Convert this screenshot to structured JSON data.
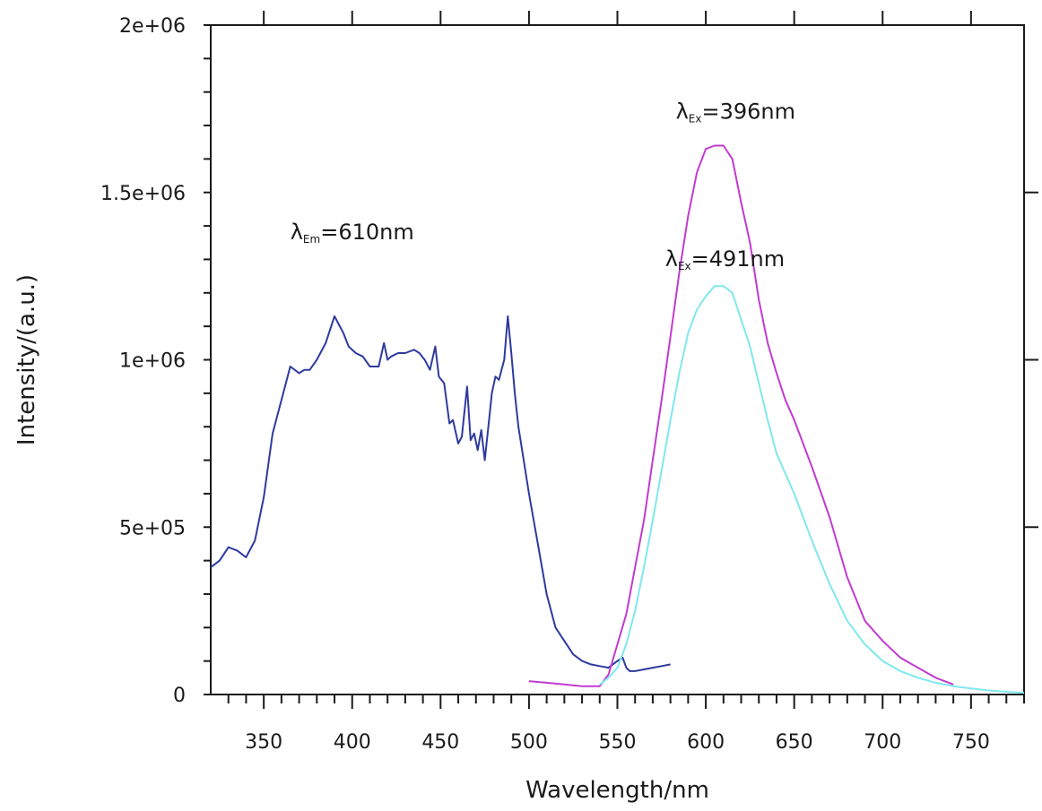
{
  "chart_data": {
    "type": "line",
    "title": "",
    "xlabel": "Wavelength/nm",
    "ylabel": "Intensity/(a.u.)",
    "xlim": [
      320,
      780
    ],
    "ylim": [
      0,
      2000000
    ],
    "x_ticks": [
      350,
      400,
      450,
      500,
      550,
      600,
      650,
      700,
      750
    ],
    "x_tick_labels": [
      "350",
      "400",
      "450",
      "500",
      "550",
      "600",
      "650",
      "700",
      "750"
    ],
    "y_ticks": [
      0,
      500000,
      1000000,
      1500000,
      2000000
    ],
    "y_tick_labels": [
      "0",
      "5e+05",
      "1e+06",
      "1.5e+06",
      "2e+06"
    ],
    "grid": false,
    "series": [
      {
        "color": "#2e3a9e",
        "x": [
          320,
          325,
          330,
          335,
          340,
          345,
          350,
          355,
          360,
          365,
          370,
          373,
          376,
          380,
          385,
          390,
          395,
          398,
          402,
          406,
          410,
          415,
          418,
          420,
          422,
          426,
          430,
          435,
          438,
          441,
          444,
          447,
          449,
          452,
          455,
          457,
          460,
          462,
          465,
          467,
          469,
          471,
          473,
          475,
          477,
          479,
          481,
          483,
          486,
          488,
          490,
          492,
          494,
          497,
          500,
          505,
          510,
          515,
          520,
          525,
          530,
          535,
          540,
          545,
          550,
          553,
          555,
          557,
          560,
          565,
          570,
          575,
          580
        ],
        "y": [
          380000,
          400000,
          440000,
          430000,
          410000,
          460000,
          590000,
          780000,
          880000,
          980000,
          960000,
          970000,
          970000,
          1000000,
          1050000,
          1130000,
          1080000,
          1040000,
          1020000,
          1010000,
          980000,
          980000,
          1050000,
          1000000,
          1010000,
          1020000,
          1020000,
          1030000,
          1020000,
          1000000,
          970000,
          1040000,
          950000,
          930000,
          810000,
          820000,
          750000,
          770000,
          920000,
          760000,
          780000,
          730000,
          790000,
          700000,
          800000,
          900000,
          950000,
          940000,
          1000000,
          1130000,
          1020000,
          900000,
          800000,
          700000,
          600000,
          450000,
          300000,
          200000,
          160000,
          120000,
          100000,
          90000,
          85000,
          80000,
          100000,
          110000,
          80000,
          70000,
          70000,
          75000,
          80000,
          85000,
          90000
        ]
      },
      {
        "color": "#c23ad1",
        "x": [
          500,
          510,
          520,
          530,
          540,
          545,
          550,
          555,
          560,
          565,
          570,
          575,
          580,
          585,
          590,
          595,
          600,
          605,
          610,
          615,
          620,
          625,
          630,
          635,
          640,
          645,
          650,
          660,
          670,
          680,
          690,
          700,
          710,
          720,
          730,
          740
        ],
        "y": [
          40000,
          35000,
          30000,
          25000,
          25000,
          60000,
          150000,
          240000,
          380000,
          520000,
          700000,
          880000,
          1070000,
          1260000,
          1430000,
          1560000,
          1630000,
          1640000,
          1640000,
          1600000,
          1470000,
          1350000,
          1180000,
          1050000,
          960000,
          880000,
          820000,
          680000,
          530000,
          350000,
          220000,
          160000,
          110000,
          80000,
          50000,
          30000
        ]
      },
      {
        "color": "#7fe8ee",
        "x": [
          540,
          545,
          550,
          555,
          560,
          565,
          570,
          575,
          580,
          585,
          590,
          595,
          600,
          605,
          610,
          615,
          620,
          625,
          630,
          635,
          640,
          645,
          650,
          660,
          670,
          680,
          690,
          700,
          710,
          720,
          730,
          740,
          750,
          760,
          770,
          780
        ],
        "y": [
          30000,
          50000,
          80000,
          150000,
          250000,
          380000,
          520000,
          670000,
          820000,
          960000,
          1080000,
          1150000,
          1190000,
          1220000,
          1220000,
          1200000,
          1120000,
          1040000,
          930000,
          820000,
          720000,
          660000,
          600000,
          460000,
          330000,
          220000,
          150000,
          100000,
          70000,
          50000,
          35000,
          25000,
          18000,
          12000,
          8000,
          5000
        ]
      }
    ],
    "annotations": [
      {
        "main": "λ",
        "sub": "Em",
        "rest": "=610nm",
        "x": 365,
        "y": 1360000
      },
      {
        "main": "λ",
        "sub": "Ex",
        "rest": "=396nm",
        "x": 583,
        "y": 1720000
      },
      {
        "main": "λ",
        "sub": "Ex",
        "rest": "=491nm",
        "x": 577,
        "y": 1280000
      }
    ]
  }
}
